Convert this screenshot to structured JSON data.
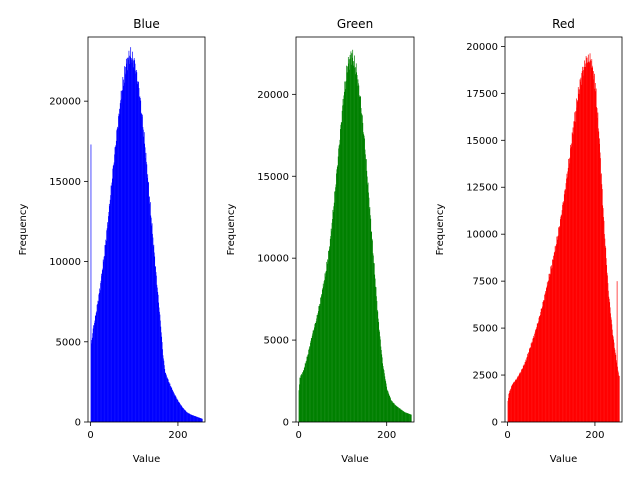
{
  "chart_data": [
    {
      "type": "bar",
      "title": "Blue",
      "xlabel": "Value",
      "ylabel": "Frequency",
      "color": "#0000ff",
      "xlim": [
        -6,
        262
      ],
      "ylim": [
        0,
        24000
      ],
      "xticks": [
        0,
        200
      ],
      "yticks": [
        0,
        5000,
        10000,
        15000,
        20000
      ],
      "spike": {
        "x": 0,
        "value": 17300
      },
      "profile": [
        [
          0,
          4600
        ],
        [
          5,
          5800
        ],
        [
          10,
          6500
        ],
        [
          20,
          8200
        ],
        [
          30,
          10300
        ],
        [
          40,
          12800
        ],
        [
          50,
          15600
        ],
        [
          60,
          18200
        ],
        [
          70,
          20500
        ],
        [
          80,
          22200
        ],
        [
          90,
          22900
        ],
        [
          100,
          22400
        ],
        [
          110,
          20800
        ],
        [
          120,
          18300
        ],
        [
          130,
          15300
        ],
        [
          140,
          12100
        ],
        [
          150,
          9000
        ],
        [
          160,
          6000
        ],
        [
          165,
          4200
        ],
        [
          170,
          3100
        ],
        [
          180,
          2400
        ],
        [
          190,
          1800
        ],
        [
          200,
          1300
        ],
        [
          210,
          900
        ],
        [
          220,
          600
        ],
        [
          230,
          450
        ],
        [
          240,
          350
        ],
        [
          250,
          250
        ],
        [
          255,
          200
        ]
      ]
    },
    {
      "type": "bar",
      "title": "Green",
      "xlabel": "Value",
      "ylabel": "Frequency",
      "color": "#008000",
      "xlim": [
        -6,
        262
      ],
      "ylim": [
        0,
        23500
      ],
      "xticks": [
        0,
        200
      ],
      "yticks": [
        0,
        5000,
        10000,
        15000,
        20000
      ],
      "profile": [
        [
          0,
          1900
        ],
        [
          2,
          2700
        ],
        [
          10,
          3100
        ],
        [
          20,
          4100
        ],
        [
          30,
          5300
        ],
        [
          40,
          6300
        ],
        [
          50,
          7600
        ],
        [
          60,
          9000
        ],
        [
          70,
          10800
        ],
        [
          80,
          13500
        ],
        [
          90,
          16500
        ],
        [
          100,
          19500
        ],
        [
          110,
          21700
        ],
        [
          120,
          22400
        ],
        [
          130,
          21500
        ],
        [
          140,
          19600
        ],
        [
          150,
          16800
        ],
        [
          160,
          13300
        ],
        [
          170,
          9800
        ],
        [
          180,
          6300
        ],
        [
          190,
          3600
        ],
        [
          200,
          2000
        ],
        [
          210,
          1300
        ],
        [
          220,
          1000
        ],
        [
          230,
          800
        ],
        [
          240,
          600
        ],
        [
          250,
          500
        ],
        [
          255,
          450
        ]
      ]
    },
    {
      "type": "bar",
      "title": "Red",
      "xlabel": "Value",
      "ylabel": "Frequency",
      "color": "#ff0000",
      "xlim": [
        -6,
        262
      ],
      "ylim": [
        0,
        20500
      ],
      "xticks": [
        0,
        200
      ],
      "yticks": [
        0,
        2500,
        5000,
        7500,
        10000,
        12500,
        15000,
        17500,
        20000
      ],
      "spike": {
        "x": 250,
        "value": 7500
      },
      "profile": [
        [
          0,
          1100
        ],
        [
          2,
          1500
        ],
        [
          10,
          2000
        ],
        [
          20,
          2300
        ],
        [
          30,
          2700
        ],
        [
          40,
          3200
        ],
        [
          50,
          3900
        ],
        [
          60,
          4600
        ],
        [
          70,
          5400
        ],
        [
          80,
          6300
        ],
        [
          90,
          7300
        ],
        [
          100,
          8300
        ],
        [
          110,
          9400
        ],
        [
          120,
          10700
        ],
        [
          130,
          12200
        ],
        [
          140,
          13900
        ],
        [
          150,
          15700
        ],
        [
          160,
          17300
        ],
        [
          170,
          18600
        ],
        [
          180,
          19300
        ],
        [
          190,
          19300
        ],
        [
          200,
          18000
        ],
        [
          210,
          14800
        ],
        [
          220,
          10500
        ],
        [
          230,
          7000
        ],
        [
          240,
          4700
        ],
        [
          250,
          3000
        ],
        [
          255,
          2400
        ]
      ]
    }
  ]
}
